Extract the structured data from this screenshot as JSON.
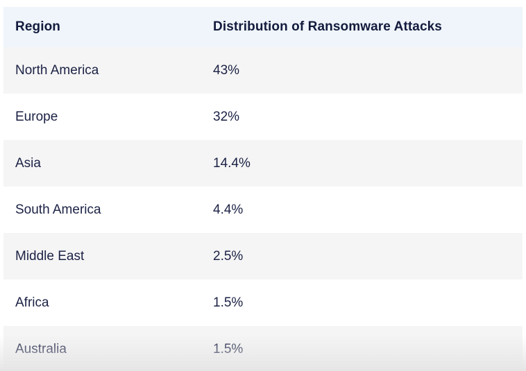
{
  "table": {
    "columns": [
      {
        "label": "Region"
      },
      {
        "label": "Distribution of Ransomware Attacks"
      }
    ],
    "rows": [
      {
        "region": "North America",
        "value": "43%"
      },
      {
        "region": "Europe",
        "value": "32%"
      },
      {
        "region": "Asia",
        "value": "14.4%"
      },
      {
        "region": "South America",
        "value": "4.4%"
      },
      {
        "region": "Middle East",
        "value": "2.5%"
      },
      {
        "region": "Africa",
        "value": "1.5%"
      },
      {
        "region": "Australia",
        "value": "1.5%"
      }
    ],
    "colors": {
      "header_bg": "#eff5fb",
      "stripe_bg": "#f5f5f5",
      "row_bg": "#ffffff",
      "header_text": "#131b3d",
      "body_text": "#1b2144"
    }
  },
  "chart_data": {
    "type": "table",
    "title": "Distribution of Ransomware Attacks",
    "categories": [
      "North America",
      "Europe",
      "Asia",
      "South America",
      "Middle East",
      "Africa",
      "Australia"
    ],
    "values": [
      43,
      32,
      14.4,
      4.4,
      2.5,
      1.5,
      1.5
    ],
    "value_unit": "%",
    "columns": [
      "Region",
      "Distribution of Ransomware Attacks"
    ],
    "layout": {
      "striped_rows": true,
      "header_background": "#eff5fb",
      "stripe_background": "#f5f5f5"
    }
  }
}
